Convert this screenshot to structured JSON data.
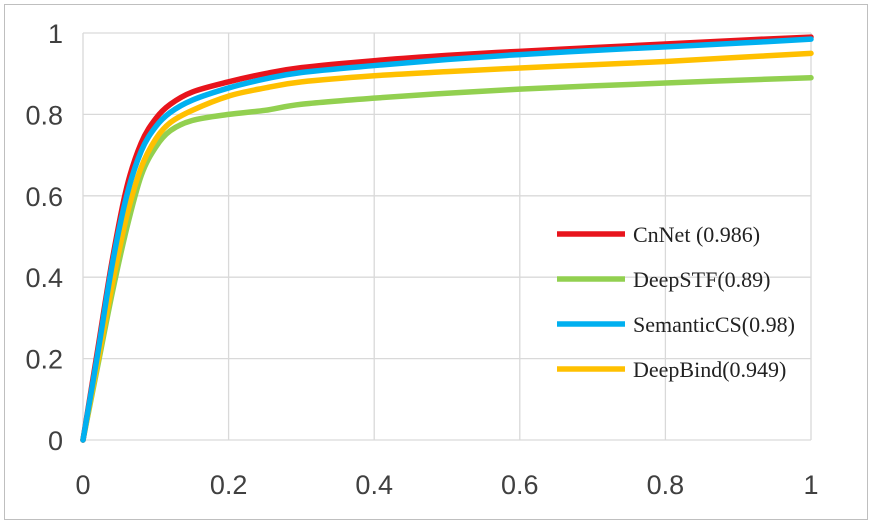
{
  "chart_data": {
    "type": "line",
    "title": "",
    "xlabel": "",
    "ylabel": "",
    "xlim": [
      0,
      1
    ],
    "ylim": [
      0,
      1
    ],
    "x_ticks": [
      "0",
      "0.2",
      "0.4",
      "0.6",
      "0.8",
      "1"
    ],
    "y_ticks": [
      "0",
      "0.2",
      "0.4",
      "0.6",
      "0.8",
      "1"
    ],
    "grid": true,
    "legend_position": "right",
    "series": [
      {
        "name": "CnNet (0.986)",
        "color": "#e8141c",
        "x": [
          0,
          0.02,
          0.04,
          0.06,
          0.08,
          0.1,
          0.12,
          0.15,
          0.2,
          0.25,
          0.3,
          0.4,
          0.5,
          0.6,
          0.7,
          0.8,
          0.9,
          1.0
        ],
        "y": [
          0,
          0.22,
          0.44,
          0.62,
          0.73,
          0.79,
          0.825,
          0.855,
          0.88,
          0.9,
          0.915,
          0.932,
          0.945,
          0.955,
          0.964,
          0.973,
          0.982,
          0.99
        ]
      },
      {
        "name": "DeepSTF(0.89)",
        "color": "#92d050",
        "x": [
          0,
          0.02,
          0.04,
          0.06,
          0.08,
          0.1,
          0.12,
          0.15,
          0.2,
          0.25,
          0.3,
          0.4,
          0.5,
          0.6,
          0.7,
          0.8,
          0.9,
          1.0
        ],
        "y": [
          0,
          0.18,
          0.36,
          0.52,
          0.65,
          0.72,
          0.76,
          0.785,
          0.8,
          0.81,
          0.825,
          0.84,
          0.852,
          0.862,
          0.87,
          0.877,
          0.884,
          0.89
        ]
      },
      {
        "name": "SemanticCS(0.98)",
        "color": "#00b0f0",
        "x": [
          0,
          0.02,
          0.04,
          0.06,
          0.08,
          0.1,
          0.12,
          0.15,
          0.2,
          0.25,
          0.3,
          0.4,
          0.5,
          0.6,
          0.7,
          0.8,
          0.9,
          1.0
        ],
        "y": [
          0,
          0.21,
          0.43,
          0.6,
          0.71,
          0.77,
          0.805,
          0.835,
          0.865,
          0.887,
          0.903,
          0.92,
          0.935,
          0.947,
          0.957,
          0.966,
          0.975,
          0.985
        ]
      },
      {
        "name": "DeepBind(0.949)",
        "color": "#ffc000",
        "x": [
          0,
          0.02,
          0.04,
          0.06,
          0.08,
          0.1,
          0.12,
          0.15,
          0.2,
          0.25,
          0.3,
          0.4,
          0.5,
          0.6,
          0.7,
          0.8,
          0.9,
          1.0
        ],
        "y": [
          0,
          0.19,
          0.38,
          0.55,
          0.67,
          0.74,
          0.78,
          0.81,
          0.845,
          0.865,
          0.88,
          0.895,
          0.905,
          0.914,
          0.922,
          0.93,
          0.94,
          0.95
        ]
      }
    ]
  }
}
